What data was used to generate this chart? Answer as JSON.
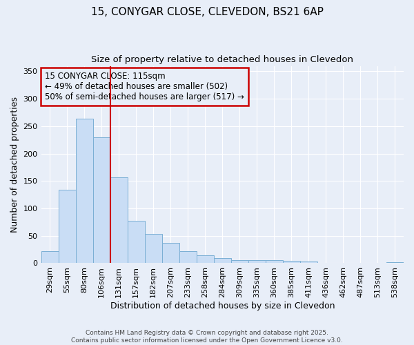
{
  "title_line1": "15, CONYGAR CLOSE, CLEVEDON, BS21 6AP",
  "title_line2": "Size of property relative to detached houses in Clevedon",
  "xlabel": "Distribution of detached houses by size in Clevedon",
  "ylabel": "Number of detached properties",
  "footnote1": "Contains HM Land Registry data © Crown copyright and database right 2025.",
  "footnote2": "Contains public sector information licensed under the Open Government Licence v3.0.",
  "categories": [
    "29sqm",
    "55sqm",
    "80sqm",
    "106sqm",
    "131sqm",
    "157sqm",
    "182sqm",
    "207sqm",
    "233sqm",
    "258sqm",
    "284sqm",
    "309sqm",
    "335sqm",
    "360sqm",
    "385sqm",
    "411sqm",
    "436sqm",
    "462sqm",
    "487sqm",
    "513sqm",
    "538sqm"
  ],
  "values": [
    22,
    134,
    264,
    230,
    157,
    78,
    54,
    37,
    22,
    14,
    9,
    5,
    5,
    5,
    4,
    3,
    1,
    1,
    1,
    1,
    2
  ],
  "bar_color": "#c9ddf5",
  "bar_edge_color": "#7bafd4",
  "property_line_x": 3.5,
  "property_line_color": "#cc0000",
  "annotation_line1": "15 CONYGAR CLOSE: 115sqm",
  "annotation_line2": "← 49% of detached houses are smaller (502)",
  "annotation_line3": "50% of semi-detached houses are larger (517) →",
  "annotation_box_color": "#cc0000",
  "ylim": [
    0,
    360
  ],
  "yticks": [
    0,
    50,
    100,
    150,
    200,
    250,
    300,
    350
  ],
  "background_color": "#e8eef8",
  "grid_color": "#ffffff",
  "title_fontsize": 11,
  "subtitle_fontsize": 9.5,
  "axis_label_fontsize": 9,
  "tick_fontsize": 8,
  "annotation_fontsize": 8.5,
  "footnote_fontsize": 6.5
}
